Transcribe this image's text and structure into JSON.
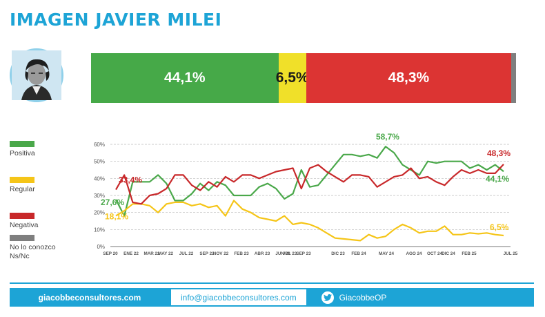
{
  "title": "IMAGEN JAVIER MILEI",
  "stacked_bar": [
    {
      "label": "44,1%",
      "value": 44.1,
      "color": "#46a948"
    },
    {
      "label": "6,5%",
      "value": 6.5,
      "color": "#f0e029"
    },
    {
      "label": "48,3%",
      "value": 48.3,
      "color": "#dc3433"
    },
    {
      "label": "",
      "value": 1.1,
      "color": "#7f7f7f"
    }
  ],
  "legend": [
    {
      "label": "Positiva",
      "color": "#4aa84a"
    },
    {
      "label": "Regular",
      "color": "#f5c518"
    },
    {
      "label": "Negativa",
      "color": "#c8282a"
    },
    {
      "label": "No lo conozco\nNs/Nc",
      "color": "#7f7f7f"
    }
  ],
  "chart_data": {
    "type": "line",
    "ylim": [
      0,
      60
    ],
    "yticks": [
      "0%",
      "10%",
      "20%",
      "30%",
      "40%",
      "50%",
      "60%"
    ],
    "xticks": [
      "SEP 20",
      "ENE 22",
      "MAR 22",
      "MAY 22",
      "JUL 22",
      "SEP 22",
      "NOV 22",
      "FEB 23",
      "ABR 23",
      "JUN 23",
      "JUL 23",
      "SEP 23",
      "DIC 23",
      "FEB 24",
      "MAY 24",
      "AGO 24",
      "OCT 24",
      "DIC 24",
      "FEB 25",
      "JUL 25"
    ],
    "xtick_idx": [
      0,
      3,
      6,
      8,
      11,
      14,
      16,
      19,
      22,
      25,
      26,
      28,
      33,
      36,
      40,
      44,
      47,
      49,
      52,
      58
    ],
    "series": [
      {
        "name": "Positiva",
        "color": "#4aa84a",
        "values": [
          27.6,
          18,
          38,
          38,
          38,
          42,
          37,
          27,
          27,
          31,
          37,
          33,
          38,
          36,
          30,
          30,
          30,
          35,
          37,
          34,
          28,
          31,
          45,
          35,
          36,
          42,
          48,
          54,
          54,
          53,
          54,
          52,
          58.7,
          55,
          48,
          45,
          42,
          50,
          49,
          50,
          50,
          50,
          46,
          48,
          45,
          48,
          44.1
        ]
      },
      {
        "name": "Regular",
        "color": "#f5c518",
        "values": [
          18.1,
          21,
          25,
          25,
          24,
          20,
          25,
          26,
          26,
          24,
          25,
          23,
          24,
          18,
          27,
          22,
          20,
          17,
          16,
          15,
          18,
          13,
          14,
          13,
          11,
          8,
          5,
          4.5,
          4,
          3.5,
          7,
          5,
          6,
          10,
          13,
          11,
          8,
          9,
          9,
          12,
          7,
          7,
          8,
          7.5,
          8,
          7,
          6.5
        ]
      },
      {
        "name": "Negativa",
        "color": "#c8282a",
        "values": [
          33.4,
          42,
          26,
          25,
          30,
          31,
          34,
          42,
          42,
          36,
          33,
          38,
          35,
          41,
          38,
          42,
          42,
          40,
          42,
          44,
          45,
          46,
          34,
          46,
          48,
          44,
          41,
          38,
          42,
          42,
          41,
          35,
          38,
          41,
          42,
          46,
          40,
          41,
          38,
          36,
          41,
          45,
          43,
          45,
          43,
          43,
          48.3
        ]
      }
    ],
    "callouts": [
      {
        "text": "27,6%",
        "series": 0,
        "idx": 0,
        "dx": -22,
        "dy": 8,
        "color": "#4aa84a"
      },
      {
        "text": "18,1%",
        "series": 1,
        "idx": 0,
        "dx": -16,
        "dy": 5,
        "color": "#f5c518"
      },
      {
        "text": "33,4%",
        "series": 2,
        "idx": 0,
        "dx": 4,
        "dy": -10,
        "color": "#c8282a"
      },
      {
        "text": "58,7%",
        "series": 0,
        "idx": 32,
        "dx": -14,
        "dy": -10,
        "color": "#4aa84a"
      },
      {
        "text": "48,3%",
        "series": 2,
        "idx": 46,
        "dx": -24,
        "dy": -12,
        "color": "#c8282a"
      },
      {
        "text": "44,1%",
        "series": 0,
        "idx": 46,
        "dx": -26,
        "dy": 15,
        "color": "#4aa84a"
      },
      {
        "text": "6,5%",
        "series": 1,
        "idx": 46,
        "dx": -20,
        "dy": -8,
        "color": "#f5c518"
      }
    ]
  },
  "footer": {
    "website": "giacobbeconsultores.com",
    "email": "info@giacobbeconsultores.com",
    "twitter": "GiacobbeOP",
    "twitter_icon": "twitter-bird-icon"
  }
}
